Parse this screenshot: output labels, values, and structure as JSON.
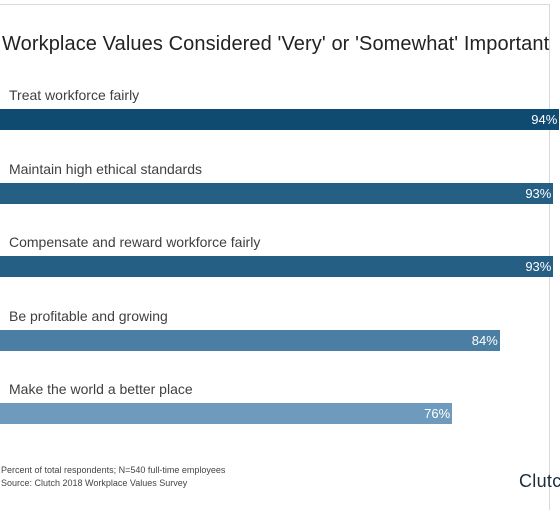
{
  "chart_data": {
    "type": "bar",
    "orientation": "horizontal",
    "title": "Workplace Values Considered 'Very' or 'Somewhat' Important",
    "categories": [
      "Treat workforce fairly",
      "Maintain high ethical standards",
      "Compensate and reward workforce fairly",
      "Be profitable and growing",
      "Make the world a better place"
    ],
    "values": [
      94,
      93,
      93,
      84,
      76
    ],
    "value_labels": [
      "94%",
      "93%",
      "93%",
      "84%",
      "76%"
    ],
    "unit": "%",
    "xlim": [
      0,
      100
    ],
    "grid": false,
    "legend": "none",
    "colors": [
      "#0f4b71",
      "#265f84",
      "#265f84",
      "#4b7ea3",
      "#6e9bbd"
    ]
  },
  "footnote": {
    "line1": "Percent of total respondents; N=540 full-time employees",
    "line2": "Source: Clutch 2018 Workplace Values Survey"
  },
  "brand": {
    "name": "Clutch",
    "visible_text": "Clutc"
  }
}
